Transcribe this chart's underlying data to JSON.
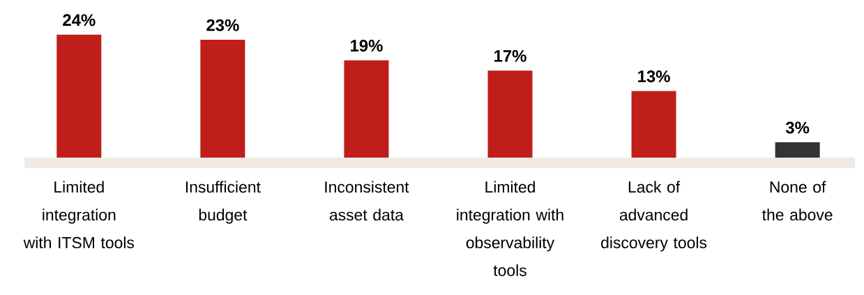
{
  "chart_data": {
    "type": "bar",
    "categories": [
      "Limited integration with ITSM tools",
      "Insufficient budget",
      "Inconsistent asset data",
      "Limited integration with observability tools",
      "Lack of advanced discovery tools",
      "None of the above"
    ],
    "values": [
      24,
      23,
      19,
      17,
      13,
      3
    ],
    "colors": [
      "#c01e1b",
      "#c01e1b",
      "#c01e1b",
      "#c01e1b",
      "#c01e1b",
      "#333333"
    ],
    "value_labels": [
      "24%",
      "23%",
      "19%",
      "17%",
      "13%",
      "3%"
    ]
  }
}
